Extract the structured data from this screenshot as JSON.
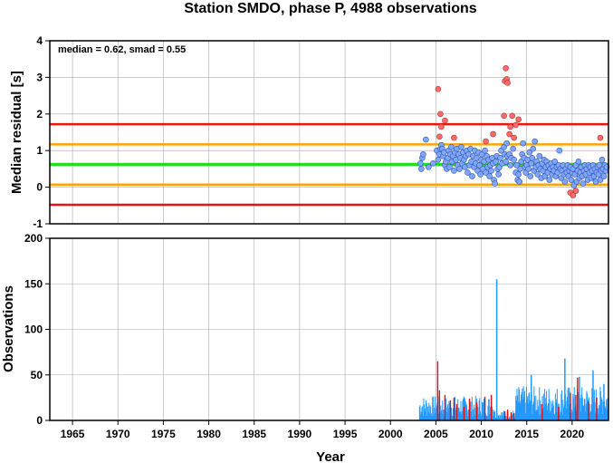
{
  "colors": {
    "median_line": "#22dd22",
    "smad_band": "#ffa500",
    "limit_band": "#ee1111",
    "point_normal": "#7fa7ff",
    "point_outlier": "#ff6b6b",
    "bar_normal": "#2299ff",
    "bar_outlier": "#dd1111",
    "grid": "#aaaaaa"
  },
  "chart_data": [
    {
      "type": "scatter",
      "title": "Station SMDO, phase P, 4988 observations",
      "xlabel": "",
      "ylabel": "Median residual [s]",
      "annotation": "median = 0.62, smad = 0.55",
      "xlim": [
        1962.5,
        2024.0
      ],
      "ylim": [
        -1,
        4
      ],
      "yticks": [
        -1,
        0,
        1,
        2,
        3,
        4
      ],
      "grid": true,
      "hlines": [
        {
          "value": 0.62,
          "role": "median"
        },
        {
          "value": 1.17,
          "role": "median+smad"
        },
        {
          "value": 0.07,
          "role": "median-smad"
        },
        {
          "value": 1.72,
          "role": "upper-limit"
        },
        {
          "value": -0.48,
          "role": "lower-limit"
        }
      ],
      "points": [
        [
          2003.3,
          0.65
        ],
        [
          2003.4,
          0.5
        ],
        [
          2003.5,
          0.8
        ],
        [
          2003.6,
          0.9
        ],
        [
          2003.9,
          1.3
        ],
        [
          2004.2,
          0.55
        ],
        [
          2004.7,
          0.65
        ],
        [
          2005.1,
          1.0
        ],
        [
          2005.25,
          0.75
        ],
        [
          2005.4,
          0.9
        ],
        [
          2005.5,
          1.05
        ],
        [
          2005.6,
          1.15
        ],
        [
          2005.7,
          1.05
        ],
        [
          2005.8,
          0.85
        ],
        [
          2005.9,
          0.95
        ],
        [
          2006.0,
          0.6
        ],
        [
          2006.1,
          0.7
        ],
        [
          2006.2,
          0.5
        ],
        [
          2006.3,
          0.8
        ],
        [
          2006.4,
          1.0
        ],
        [
          2006.5,
          0.55
        ],
        [
          2006.6,
          0.9
        ],
        [
          2006.7,
          1.1
        ],
        [
          2006.8,
          0.7
        ],
        [
          2006.9,
          0.85
        ],
        [
          2007.0,
          0.45
        ],
        [
          2007.1,
          0.95
        ],
        [
          2007.2,
          0.75
        ],
        [
          2007.3,
          1.05
        ],
        [
          2007.4,
          0.6
        ],
        [
          2007.5,
          0.9
        ],
        [
          2007.6,
          0.5
        ],
        [
          2007.7,
          0.8
        ],
        [
          2007.8,
          1.1
        ],
        [
          2007.9,
          0.65
        ],
        [
          2008.0,
          0.95
        ],
        [
          2008.1,
          0.75
        ],
        [
          2008.2,
          0.55
        ],
        [
          2008.3,
          0.85
        ],
        [
          2008.4,
          1.0
        ],
        [
          2008.5,
          0.4
        ],
        [
          2008.6,
          0.9
        ],
        [
          2008.7,
          0.6
        ],
        [
          2008.8,
          1.05
        ],
        [
          2008.9,
          0.7
        ],
        [
          2009.0,
          0.3
        ],
        [
          2009.1,
          0.85
        ],
        [
          2009.2,
          0.55
        ],
        [
          2009.3,
          1.0
        ],
        [
          2009.4,
          0.65
        ],
        [
          2009.5,
          0.8
        ],
        [
          2009.6,
          0.45
        ],
        [
          2009.7,
          0.95
        ],
        [
          2009.8,
          0.6
        ],
        [
          2009.9,
          0.35
        ],
        [
          2010.0,
          0.75
        ],
        [
          2010.1,
          0.9
        ],
        [
          2010.2,
          0.5
        ],
        [
          2010.3,
          0.7
        ],
        [
          2010.4,
          1.0
        ],
        [
          2010.5,
          0.4
        ],
        [
          2010.6,
          0.85
        ],
        [
          2010.7,
          0.55
        ],
        [
          2010.8,
          0.75
        ],
        [
          2010.9,
          0.3
        ],
        [
          2011.0,
          0.6
        ],
        [
          2011.1,
          0.45
        ],
        [
          2011.2,
          0.8
        ],
        [
          2011.3,
          0.65
        ],
        [
          2011.4,
          0.2
        ],
        [
          2011.5,
          0.1
        ],
        [
          2011.6,
          0.7
        ],
        [
          2011.7,
          0.85
        ],
        [
          2011.8,
          0.5
        ],
        [
          2011.9,
          0.35
        ],
        [
          2012.0,
          0.55
        ],
        [
          2012.1,
          0.8
        ],
        [
          2012.2,
          1.0
        ],
        [
          2012.3,
          0.65
        ],
        [
          2012.5,
          1.1
        ],
        [
          2012.6,
          0.9
        ],
        [
          2012.7,
          0.7
        ],
        [
          2012.8,
          1.2
        ],
        [
          2012.9,
          0.85
        ],
        [
          2013.1,
          0.9
        ],
        [
          2013.2,
          0.6
        ],
        [
          2013.3,
          0.8
        ],
        [
          2013.5,
          1.05
        ],
        [
          2013.6,
          0.75
        ],
        [
          2013.8,
          0.4
        ],
        [
          2013.9,
          0.6
        ],
        [
          2014.0,
          0.2
        ],
        [
          2014.1,
          0.35
        ],
        [
          2014.2,
          0.15
        ],
        [
          2014.3,
          0.5
        ],
        [
          2014.4,
          0.7
        ],
        [
          2014.5,
          0.9
        ],
        [
          2014.6,
          1.2
        ],
        [
          2014.7,
          0.8
        ],
        [
          2014.8,
          0.55
        ],
        [
          2014.9,
          0.4
        ],
        [
          2015.0,
          0.6
        ],
        [
          2015.1,
          0.75
        ],
        [
          2015.2,
          0.5
        ],
        [
          2015.3,
          0.95
        ],
        [
          2015.4,
          0.3
        ],
        [
          2015.5,
          0.65
        ],
        [
          2015.6,
          0.8
        ],
        [
          2015.7,
          1.05
        ],
        [
          2015.8,
          0.45
        ],
        [
          2015.9,
          1.25
        ],
        [
          2016.0,
          0.55
        ],
        [
          2016.1,
          0.7
        ],
        [
          2016.2,
          0.35
        ],
        [
          2016.3,
          0.6
        ],
        [
          2016.4,
          0.85
        ],
        [
          2016.5,
          0.5
        ],
        [
          2016.6,
          0.25
        ],
        [
          2016.7,
          0.65
        ],
        [
          2016.8,
          0.45
        ],
        [
          2016.9,
          0.75
        ],
        [
          2017.0,
          0.3
        ],
        [
          2017.1,
          0.55
        ],
        [
          2017.2,
          0.7
        ],
        [
          2017.3,
          0.4
        ],
        [
          2017.4,
          0.6
        ],
        [
          2017.5,
          0.2
        ],
        [
          2017.6,
          0.5
        ],
        [
          2017.7,
          0.65
        ],
        [
          2017.8,
          0.35
        ],
        [
          2017.9,
          0.55
        ],
        [
          2018.0,
          0.45
        ],
        [
          2018.1,
          0.7
        ],
        [
          2018.2,
          0.3
        ],
        [
          2018.3,
          0.55
        ],
        [
          2018.4,
          0.4
        ],
        [
          2018.5,
          0.6
        ],
        [
          2018.6,
          1.0
        ],
        [
          2018.7,
          0.5
        ],
        [
          2018.8,
          0.25
        ],
        [
          2018.9,
          0.45
        ],
        [
          2019.0,
          0.6
        ],
        [
          2019.1,
          0.35
        ],
        [
          2019.2,
          0.15
        ],
        [
          2019.3,
          0.5
        ],
        [
          2019.4,
          0.4
        ],
        [
          2019.5,
          0.6
        ],
        [
          2019.6,
          0.3
        ],
        [
          2019.7,
          0.45
        ],
        [
          2019.8,
          0.55
        ],
        [
          2019.9,
          0.2
        ],
        [
          2020.0,
          0.4
        ],
        [
          2020.1,
          0.5
        ],
        [
          2020.2,
          0.05
        ],
        [
          2020.3,
          0.35
        ],
        [
          2020.4,
          0.6
        ],
        [
          2020.5,
          0.15
        ],
        [
          2020.6,
          0.45
        ],
        [
          2020.7,
          0.7
        ],
        [
          2020.8,
          0.25
        ],
        [
          2020.9,
          0.4
        ],
        [
          2021.0,
          0.55
        ],
        [
          2021.1,
          0.3
        ],
        [
          2021.2,
          0.1
        ],
        [
          2021.3,
          0.45
        ],
        [
          2021.4,
          0.6
        ],
        [
          2021.5,
          0.35
        ],
        [
          2021.6,
          0.5
        ],
        [
          2021.7,
          0.2
        ],
        [
          2021.8,
          0.6
        ],
        [
          2021.9,
          0.4
        ],
        [
          2022.0,
          0.55
        ],
        [
          2022.1,
          0.25
        ],
        [
          2022.2,
          0.45
        ],
        [
          2022.3,
          0.6
        ],
        [
          2022.4,
          0.3
        ],
        [
          2022.5,
          0.5
        ],
        [
          2022.6,
          0.15
        ],
        [
          2022.7,
          0.4
        ],
        [
          2022.8,
          0.55
        ],
        [
          2022.9,
          0.35
        ],
        [
          2023.0,
          0.6
        ],
        [
          2023.1,
          0.2
        ],
        [
          2023.2,
          0.45
        ],
        [
          2023.3,
          0.75
        ],
        [
          2023.4,
          0.5
        ],
        [
          2023.5,
          0.3
        ],
        [
          2023.6,
          0.6
        ],
        [
          2023.7,
          0.45
        ],
        [
          2023.8,
          0.55
        ]
      ],
      "outliers": [
        [
          2005.25,
          2.68
        ],
        [
          2005.4,
          1.38
        ],
        [
          2005.5,
          2.0
        ],
        [
          2005.6,
          1.65
        ],
        [
          2006.0,
          1.82
        ],
        [
          2007.0,
          1.35
        ],
        [
          2012.6,
          2.9
        ],
        [
          2012.7,
          3.25
        ],
        [
          2012.8,
          2.95
        ],
        [
          2012.9,
          2.85
        ],
        [
          2012.5,
          1.95
        ],
        [
          2013.1,
          1.45
        ],
        [
          2013.2,
          1.65
        ],
        [
          2013.4,
          1.95
        ],
        [
          2013.6,
          1.35
        ],
        [
          2013.8,
          1.7
        ],
        [
          2014.1,
          1.85
        ],
        [
          2011.3,
          1.45
        ],
        [
          2010.5,
          1.25
        ],
        [
          2023.1,
          1.35
        ],
        [
          2019.8,
          -0.15
        ],
        [
          2020.1,
          -0.22
        ],
        [
          2020.4,
          -0.1
        ]
      ]
    },
    {
      "type": "bar",
      "xlabel": "Year",
      "ylabel": "Observations",
      "xlim": [
        1962.5,
        2024.0
      ],
      "ylim": [
        0,
        200
      ],
      "yticks": [
        0,
        50,
        100,
        150,
        200
      ],
      "xticks": [
        1965,
        1970,
        1975,
        1980,
        1985,
        1990,
        1995,
        2000,
        2005,
        2010,
        2015,
        2020
      ],
      "grid": true,
      "segments": [
        {
          "start": 2003.2,
          "end": 2011.5,
          "base": 12,
          "amp": 14
        },
        {
          "start": 2011.5,
          "end": 2013.8,
          "base": 5,
          "amp": 6
        },
        {
          "start": 2013.8,
          "end": 2024.0,
          "base": 18,
          "amp": 18
        }
      ],
      "spikes": [
        [
          2011.7,
          155
        ],
        [
          2019.2,
          68
        ],
        [
          2015.5,
          50
        ],
        [
          2022.3,
          55
        ],
        [
          2020.8,
          48
        ],
        [
          2023.5,
          40
        ]
      ],
      "outlier_bars": [
        [
          2005.2,
          65
        ],
        [
          2005.4,
          33
        ],
        [
          2006.0,
          28
        ],
        [
          2006.6,
          22
        ],
        [
          2007.0,
          25
        ],
        [
          2007.3,
          18
        ],
        [
          2008.1,
          15
        ],
        [
          2008.7,
          24
        ],
        [
          2009.5,
          20
        ],
        [
          2010.4,
          26
        ],
        [
          2011.1,
          28
        ],
        [
          2012.6,
          10
        ],
        [
          2012.9,
          12
        ],
        [
          2013.3,
          9
        ],
        [
          2013.6,
          8
        ],
        [
          2016.7,
          18
        ],
        [
          2019.8,
          30
        ],
        [
          2020.4,
          28
        ],
        [
          2020.6,
          47
        ],
        [
          2021.8,
          20
        ],
        [
          2022.7,
          25
        ],
        [
          2018.5,
          15
        ]
      ]
    }
  ]
}
